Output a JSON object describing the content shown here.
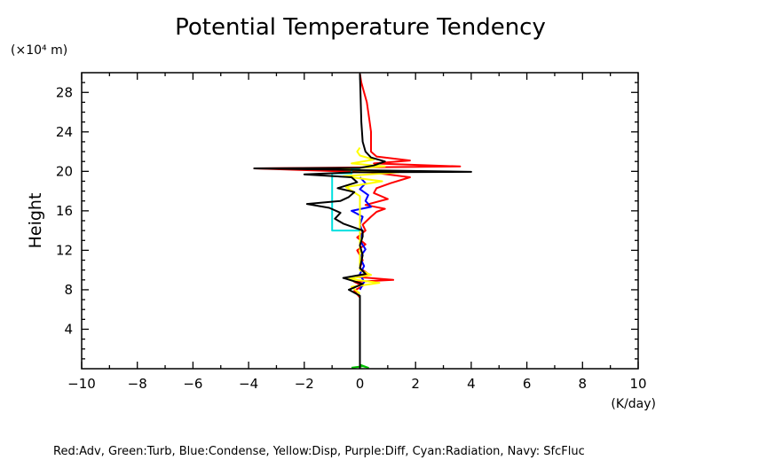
{
  "chart_data": {
    "type": "line",
    "title": "Potential Temperature Tendency",
    "ylabel": "Height",
    "y_unit_label": "(×10⁴ m)",
    "x_unit_label": "(K/day)",
    "xlim": [
      -10,
      10
    ],
    "ylim": [
      0,
      30
    ],
    "x_ticks": [
      -10,
      -8,
      -6,
      -4,
      -2,
      0,
      2,
      4,
      6,
      8,
      10
    ],
    "x_tick_labels": [
      "−10",
      "−8",
      "−6",
      "−4",
      "−2",
      "0",
      "2",
      "4",
      "6",
      "8",
      "10"
    ],
    "y_ticks": [
      4,
      8,
      12,
      16,
      20,
      24,
      28
    ],
    "y_tick_labels": [
      "4",
      "8",
      "12",
      "16",
      "20",
      "24",
      "28"
    ],
    "grid": false,
    "legend_text": "Red:Adv, Green:Turb, Blue:Condense, Yellow:Disp, Purple:Diff, Cyan:Radiation, Navy: SfcFluc",
    "series": [
      {
        "name": "Red:Adv",
        "color": "#ff0000",
        "points": [
          [
            0,
            0
          ],
          [
            0,
            7.2
          ],
          [
            -0.2,
            7.9
          ],
          [
            0.1,
            8.4
          ],
          [
            -0.2,
            8.8
          ],
          [
            1.2,
            9.0
          ],
          [
            -0.1,
            9.3
          ],
          [
            0.3,
            9.6
          ],
          [
            0,
            10.2
          ],
          [
            0.1,
            11
          ],
          [
            -0.1,
            12
          ],
          [
            0.2,
            12.6
          ],
          [
            -0.1,
            13.3
          ],
          [
            0.2,
            14.0
          ],
          [
            0.1,
            14.6
          ],
          [
            0.4,
            15.4
          ],
          [
            0.6,
            15.9
          ],
          [
            0.9,
            16.2
          ],
          [
            0.2,
            16.6
          ],
          [
            1.0,
            17.2
          ],
          [
            0.5,
            17.8
          ],
          [
            0.6,
            18.3
          ],
          [
            1.1,
            18.8
          ],
          [
            1.8,
            19.4
          ],
          [
            0.4,
            19.9
          ],
          [
            -3.8,
            20.3
          ],
          [
            0,
            20.4
          ],
          [
            3.6,
            20.5
          ],
          [
            0.5,
            20.8
          ],
          [
            1.8,
            21.1
          ],
          [
            0.6,
            21.5
          ],
          [
            0.4,
            22.0
          ],
          [
            0.4,
            23.0
          ],
          [
            0.4,
            24
          ],
          [
            0.35,
            25
          ],
          [
            0.3,
            26
          ],
          [
            0.25,
            27
          ],
          [
            0.15,
            28
          ],
          [
            0.05,
            29
          ],
          [
            0,
            29.9
          ]
        ]
      },
      {
        "name": "Green:Turb",
        "color": "#00c000",
        "points": [
          [
            -0.3,
            0.1
          ],
          [
            0.1,
            0.25
          ],
          [
            0.3,
            0.1
          ],
          [
            0,
            0.4
          ]
        ]
      },
      {
        "name": "Blue:Condense",
        "color": "#0000ff",
        "points": [
          [
            0,
            8
          ],
          [
            0.15,
            8.8
          ],
          [
            0,
            9.6
          ],
          [
            0.15,
            10.4
          ],
          [
            0,
            11.3
          ],
          [
            0.2,
            12.1
          ],
          [
            0,
            13
          ],
          [
            0.1,
            13.8
          ],
          [
            0,
            14.6
          ],
          [
            0.1,
            15.4
          ],
          [
            -0.3,
            16.0
          ],
          [
            0.4,
            16.4
          ],
          [
            0.2,
            17.0
          ],
          [
            0.3,
            17.6
          ],
          [
            0,
            18.2
          ],
          [
            0.2,
            18.8
          ],
          [
            0,
            19.4
          ]
        ]
      },
      {
        "name": "Yellow:Disp",
        "color": "#ffff00",
        "points": [
          [
            0,
            7.6
          ],
          [
            -0.3,
            8.3
          ],
          [
            0.7,
            8.7
          ],
          [
            -0.4,
            9.1
          ],
          [
            0.4,
            9.5
          ],
          [
            0,
            10
          ],
          [
            0,
            17.5
          ],
          [
            -0.5,
            18.4
          ],
          [
            0.8,
            19.0
          ],
          [
            -0.6,
            19.5
          ],
          [
            1.4,
            19.9
          ],
          [
            -0.9,
            20.2
          ],
          [
            0.9,
            20.5
          ],
          [
            -0.3,
            20.8
          ],
          [
            0.5,
            21.2
          ],
          [
            0,
            21.6
          ],
          [
            -0.1,
            22.0
          ],
          [
            0,
            22.4
          ]
        ]
      },
      {
        "name": "Cyan:Radiation",
        "color": "#00e0e0",
        "points": [
          [
            0,
            14.0
          ],
          [
            -1.0,
            14.0
          ],
          [
            -1.0,
            17.5
          ],
          [
            -1.0,
            19.8
          ],
          [
            -0.3,
            19.8
          ],
          [
            -0.3,
            20.2
          ],
          [
            0,
            20.2
          ]
        ]
      },
      {
        "name": "Navy: SfcFluc",
        "color": "#000000",
        "points": [
          [
            0,
            0
          ],
          [
            0,
            7.4
          ],
          [
            -0.4,
            8.0
          ],
          [
            0.1,
            8.6
          ],
          [
            -0.6,
            9.2
          ],
          [
            0.2,
            9.6
          ],
          [
            0,
            10.2
          ],
          [
            0.1,
            11.5
          ],
          [
            0,
            12.5
          ],
          [
            0.1,
            13.4
          ],
          [
            0.1,
            14.0
          ],
          [
            -0.6,
            14.7
          ],
          [
            -0.9,
            15.2
          ],
          [
            -0.7,
            15.8
          ],
          [
            -1.1,
            16.3
          ],
          [
            -1.9,
            16.7
          ],
          [
            -0.7,
            17.0
          ],
          [
            -0.4,
            17.4
          ],
          [
            -0.2,
            17.9
          ],
          [
            -0.8,
            18.3
          ],
          [
            -0.1,
            18.9
          ],
          [
            -0.3,
            19.4
          ],
          [
            -2.0,
            19.7
          ],
          [
            -0.2,
            19.9
          ],
          [
            4.0,
            19.95
          ],
          [
            0.5,
            20.1
          ],
          [
            -3.8,
            20.3
          ],
          [
            0,
            20.35
          ],
          [
            0.5,
            20.6
          ],
          [
            0.9,
            21.0
          ],
          [
            0.4,
            21.4
          ],
          [
            0.2,
            22.0
          ],
          [
            0.1,
            23
          ],
          [
            0.05,
            25
          ],
          [
            0,
            29.9
          ]
        ]
      }
    ]
  }
}
